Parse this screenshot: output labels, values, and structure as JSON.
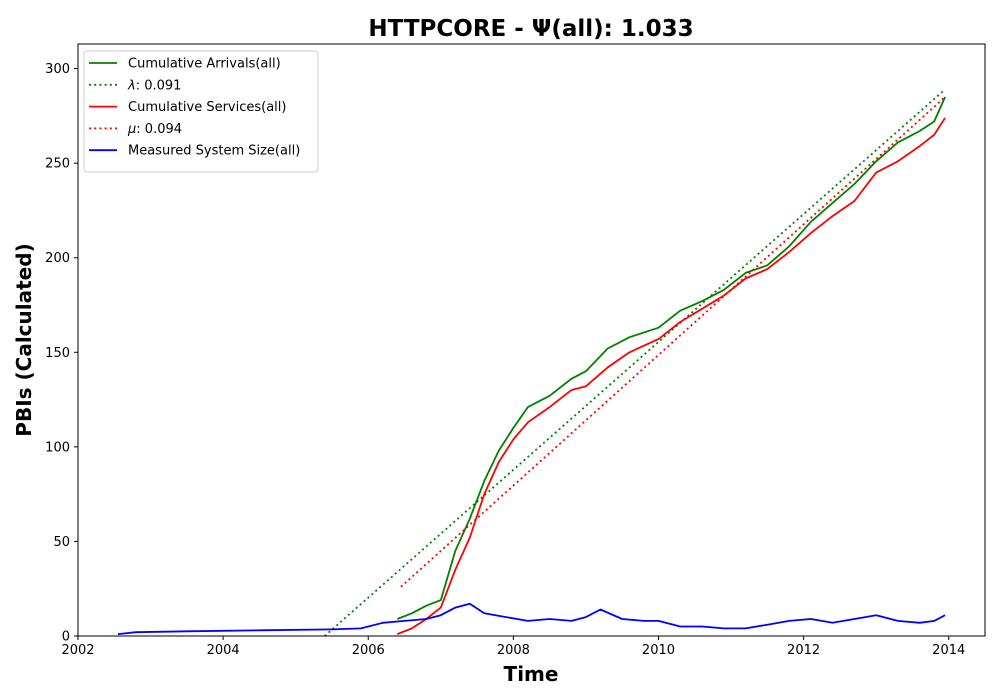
{
  "chart_data": {
    "type": "line",
    "title": "HTTPCORE -  Ψ(all): 1.033",
    "xlabel": "Time",
    "ylabel": "PBIs (Calculated)",
    "xlim": [
      2002.0,
      2014.5
    ],
    "ylim": [
      0,
      313
    ],
    "x_ticks": [
      2002,
      2004,
      2006,
      2008,
      2010,
      2012,
      2014
    ],
    "x_tick_labels": [
      "2002",
      "2004",
      "2006",
      "2008",
      "2010",
      "2012",
      "2014"
    ],
    "y_ticks": [
      0,
      50,
      100,
      150,
      200,
      250,
      300
    ],
    "y_tick_labels": [
      "0",
      "50",
      "100",
      "150",
      "200",
      "250",
      "300"
    ],
    "grid": false,
    "legend_position": "top-left",
    "series": [
      {
        "name": "Cumulative Arrivals(all)",
        "color": "#008000",
        "style": "solid",
        "x": [
          2006.4,
          2006.6,
          2006.8,
          2007.0,
          2007.2,
          2007.4,
          2007.6,
          2007.8,
          2008.0,
          2008.2,
          2008.5,
          2008.8,
          2009.0,
          2009.3,
          2009.6,
          2010.0,
          2010.3,
          2010.6,
          2010.9,
          2011.2,
          2011.5,
          2011.8,
          2012.1,
          2012.4,
          2012.7,
          2013.0,
          2013.3,
          2013.6,
          2013.8,
          2013.95
        ],
        "y": [
          9,
          12,
          16,
          19,
          45,
          62,
          82,
          98,
          110,
          121,
          127,
          136,
          140,
          152,
          158,
          163,
          172,
          177,
          183,
          192,
          196,
          206,
          219,
          229,
          239,
          251,
          261,
          267,
          272,
          285
        ]
      },
      {
        "name": "λ: 0.091",
        "label_symbol": "λ",
        "label_value": ": 0.091",
        "color": "#008000",
        "style": "dotted",
        "x": [
          2005.4,
          2013.95
        ],
        "y": [
          0,
          289
        ]
      },
      {
        "name": "Cumulative Services(all)",
        "color": "#ff0000",
        "style": "solid",
        "x": [
          2006.4,
          2006.6,
          2006.8,
          2007.0,
          2007.2,
          2007.4,
          2007.6,
          2007.8,
          2008.0,
          2008.2,
          2008.5,
          2008.8,
          2009.0,
          2009.3,
          2009.6,
          2010.0,
          2010.3,
          2010.6,
          2010.9,
          2011.2,
          2011.5,
          2011.8,
          2012.1,
          2012.4,
          2012.7,
          2013.0,
          2013.3,
          2013.6,
          2013.8,
          2013.95
        ],
        "y": [
          1,
          4,
          9,
          15,
          35,
          52,
          75,
          92,
          104,
          113,
          121,
          130,
          132,
          142,
          150,
          157,
          166,
          173,
          180,
          189,
          194,
          203,
          213,
          222,
          230,
          245,
          251,
          259,
          265,
          274
        ]
      },
      {
        "name": "μ: 0.094",
        "label_symbol": "μ",
        "label_value": ": 0.094",
        "color": "#ff0000",
        "style": "dotted",
        "x": [
          2006.45,
          2013.95
        ],
        "y": [
          26,
          285
        ]
      },
      {
        "name": "Measured System Size(all)",
        "color": "#0000ff",
        "style": "solid",
        "x": [
          2002.55,
          2002.8,
          2003.5,
          2004.5,
          2005.5,
          2005.9,
          2006.2,
          2006.5,
          2006.8,
          2007.0,
          2007.2,
          2007.4,
          2007.6,
          2007.9,
          2008.2,
          2008.5,
          2008.8,
          2009.0,
          2009.2,
          2009.5,
          2009.8,
          2010.0,
          2010.3,
          2010.6,
          2010.9,
          2011.2,
          2011.5,
          2011.8,
          2012.1,
          2012.4,
          2012.7,
          2013.0,
          2013.3,
          2013.6,
          2013.8,
          2013.95
        ],
        "y": [
          1,
          2,
          2.5,
          3,
          3.5,
          4,
          7,
          8,
          9,
          11,
          15,
          17,
          12,
          10,
          8,
          9,
          8,
          10,
          14,
          9,
          8,
          8,
          5,
          5,
          4,
          4,
          6,
          8,
          9,
          7,
          9,
          11,
          8,
          7,
          8,
          11
        ]
      }
    ]
  }
}
